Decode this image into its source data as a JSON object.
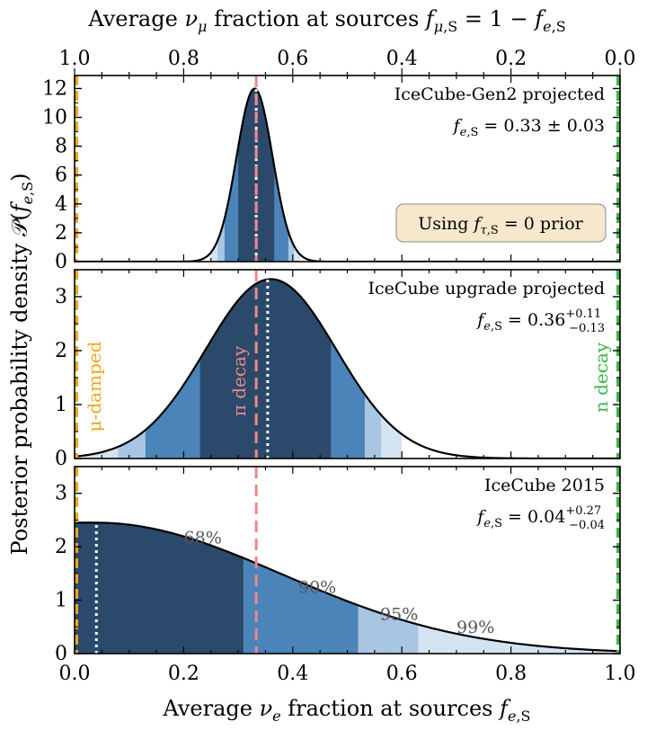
{
  "chart_data": {
    "type": "area",
    "xlabel": "Average ν_e fraction at sources f_e,S",
    "x2label": "Average ν_μ fraction at sources f_μ,S = 1 − f_e,S",
    "ylabel": "Posterior probability density 𝒫(f_e,S)",
    "xlim": [
      0,
      1
    ],
    "x2lim": [
      1,
      0
    ],
    "x_ticks": [
      "0.0",
      "0.2",
      "0.4",
      "0.6",
      "0.8",
      "1.0"
    ],
    "x2_ticks": [
      "1.0",
      "0.8",
      "0.6",
      "0.4",
      "0.2",
      "0.0"
    ],
    "colors": {
      "region_68": "#2b4a6b",
      "region_90": "#4a84b8",
      "region_95": "#a8c6e1",
      "region_99": "#d4e3f2",
      "curve": "#000000",
      "pi_decay_line": "#ee8888",
      "mu_damped": "#f2a51f",
      "n_decay": "#3cb54a",
      "median_line": "#ffffff",
      "prior_box_fill": "#f7e8cc"
    },
    "reference_lines": {
      "pi_decay": 0.333,
      "mu_damped": 0.0,
      "n_decay": 1.0
    },
    "annotations": {
      "mu_damped": "μ-damped",
      "pi_decay": "π decay",
      "n_decay": "n decay"
    },
    "panels": [
      {
        "name": "IceCube-Gen2 projected",
        "label": "IceCube-Gen2 projected",
        "result": "f_e,S = 0.33 ± 0.03",
        "result_main": "0.33 ± 0.03",
        "prior_box": "Using f_τ,S = 0 prior",
        "shape": "gaussian",
        "peak": 0.33,
        "sigma": 0.033,
        "median": 0.333,
        "ylim": [
          0,
          12.9
        ],
        "y_ticks": [
          0,
          2,
          4,
          6,
          8,
          10,
          12
        ],
        "regions": {
          "68": [
            0.3,
            0.366
          ],
          "90": [
            0.275,
            0.392
          ],
          "95": [
            0.262,
            0.402
          ],
          "99": [
            0.248,
            0.414
          ]
        }
      },
      {
        "name": "IceCube upgrade projected",
        "label": "IceCube upgrade projected",
        "result": "f_e,S = 0.36 +0.11 −0.13",
        "result_main": "0.36",
        "result_sup": "+0.11",
        "result_sub": "−0.13",
        "shape": "gaussian",
        "peak": 0.36,
        "sigma": 0.12,
        "median": 0.354,
        "ylim": [
          0,
          3.5
        ],
        "y_ticks": [
          0,
          1,
          2,
          3
        ],
        "regions": {
          "68": [
            0.23,
            0.47
          ],
          "90": [
            0.13,
            0.532
          ],
          "95": [
            0.08,
            0.562
          ],
          "99": [
            0.0,
            0.6
          ]
        }
      },
      {
        "name": "IceCube 2015",
        "label": "IceCube 2015",
        "result": "f_e,S = 0.04 +0.27 −0.04",
        "result_main": "0.04",
        "result_sup": "+0.27",
        "result_sub": "−0.04",
        "shape": "half-gaussian",
        "peak": 0.04,
        "sigma": 0.34,
        "median": 0.04,
        "ylim": [
          0,
          3.5
        ],
        "y_ticks": [
          0,
          1,
          2,
          3
        ],
        "regions": {
          "68": [
            0.0,
            0.31
          ],
          "90": [
            0.31,
            0.52
          ],
          "95": [
            0.52,
            0.63
          ],
          "99": [
            0.63,
            1.0
          ]
        },
        "region_labels": [
          {
            "text": "68%",
            "x": 0.235,
            "y": 2.06
          },
          {
            "text": "90%",
            "x": 0.445,
            "y": 1.14
          },
          {
            "text": "95%",
            "x": 0.595,
            "y": 0.63
          },
          {
            "text": "99%",
            "x": 0.735,
            "y": 0.39
          }
        ]
      }
    ]
  }
}
